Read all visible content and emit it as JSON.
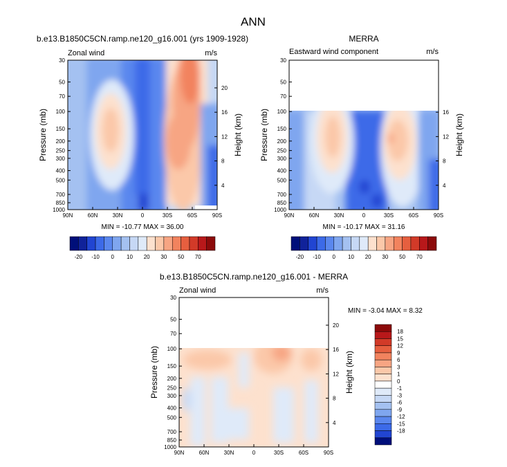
{
  "page": {
    "title": "ANN"
  },
  "colors": {
    "pos": [
      "#fde1ce",
      "#fbc8a9",
      "#f7a583",
      "#f2835e",
      "#e65f3f",
      "#d23a28",
      "#b8181a",
      "#8c0a0a"
    ],
    "neg": [
      "#dfeaf9",
      "#c6d8f5",
      "#a4c1f1",
      "#7fa6ef",
      "#5a87ee",
      "#3c6ae8",
      "#2145d2",
      "#10229a",
      "#000f7a"
    ]
  },
  "chart_data": [
    {
      "type": "heatmap",
      "title": "b.e13.B1850C5CN.ramp.ne120_g16.001 (yrs 1909-1928)",
      "left_label": "Zonal wind",
      "units": "m/s",
      "xlabel": "",
      "ylabel": "Pressure (mb)",
      "ylabel_right": "Height (km)",
      "x_ticks": [
        "90N",
        "60N",
        "30N",
        "0",
        "30S",
        "60S",
        "90S"
      ],
      "y_ticks": [
        "30",
        "50",
        "70",
        "100",
        "150",
        "200",
        "250",
        "300",
        "400",
        "500",
        "700",
        "850",
        "1000"
      ],
      "y_right_ticks": [
        "20",
        "16",
        "12",
        "8",
        "4"
      ],
      "stats": "MIN = -10.77  MAX = 36.00",
      "colorbar_labels": [
        "-20",
        "-10",
        "0",
        "10",
        "20",
        "30",
        "50",
        "70"
      ]
    },
    {
      "type": "heatmap",
      "title": "MERRA",
      "left_label": "Eastward wind component",
      "units": "m/s",
      "xlabel": "",
      "ylabel": "Pressure (mb)",
      "ylabel_right": "Height (km)",
      "x_ticks": [
        "90N",
        "60N",
        "30N",
        "0",
        "30S",
        "60S",
        "90S"
      ],
      "y_ticks": [
        "30",
        "50",
        "70",
        "100",
        "150",
        "200",
        "250",
        "300",
        "400",
        "500",
        "700",
        "850",
        "1000"
      ],
      "y_right_ticks": [
        "16",
        "12",
        "8",
        "4"
      ],
      "stats": "MIN = -10.17  MAX = 31.16",
      "colorbar_labels": [
        "-20",
        "-10",
        "0",
        "10",
        "20",
        "30",
        "50",
        "70"
      ]
    },
    {
      "type": "heatmap",
      "title": "b.e13.B1850C5CN.ramp.ne120_g16.001 - MERRA",
      "left_label": "Zonal wind",
      "units": "m/s",
      "xlabel": "",
      "ylabel": "Pressure (mb)",
      "ylabel_right": "Height (km)",
      "x_ticks": [
        "90N",
        "60N",
        "30N",
        "0",
        "30S",
        "60S",
        "90S"
      ],
      "y_ticks": [
        "30",
        "50",
        "70",
        "100",
        "150",
        "200",
        "250",
        "300",
        "400",
        "500",
        "700",
        "850",
        "1000"
      ],
      "y_right_ticks": [
        "20",
        "16",
        "12",
        "8",
        "4"
      ],
      "stats": "MIN = -3.04  MAX =  8.32",
      "colorbar_labels": [
        "18",
        "15",
        "12",
        "9",
        "6",
        "3",
        "1",
        "0",
        "-1",
        "-3",
        "-6",
        "-9",
        "-12",
        "-15",
        "-18"
      ]
    }
  ]
}
